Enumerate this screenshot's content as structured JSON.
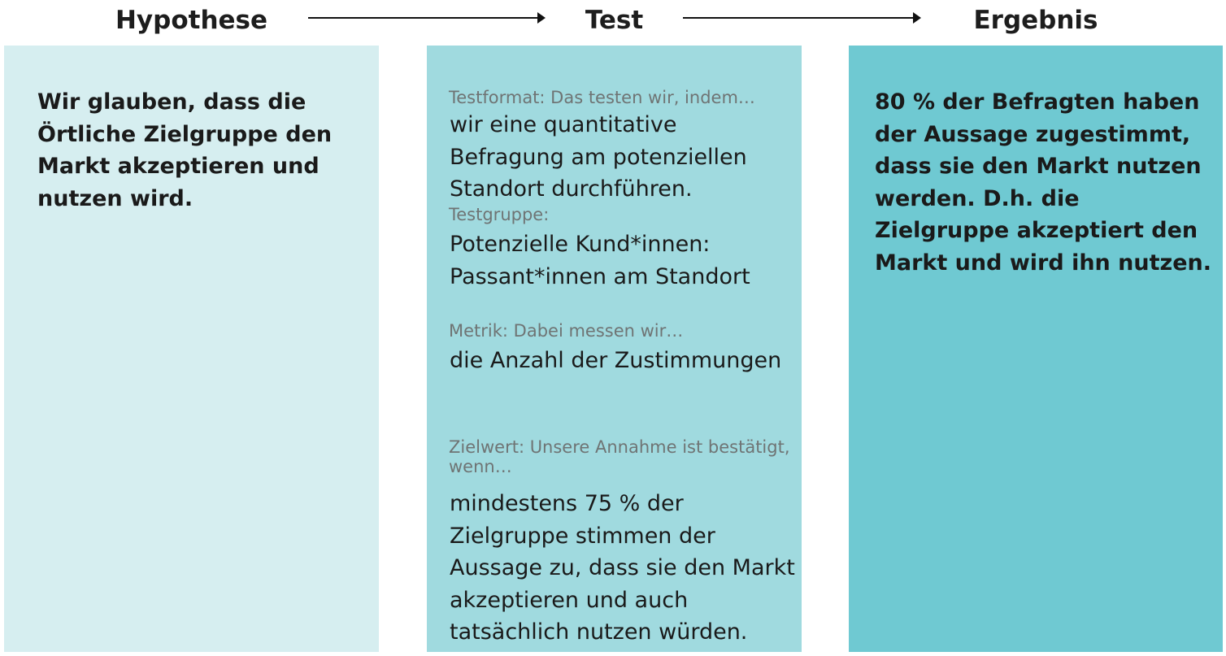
{
  "headers": {
    "hypothese": "Hypothese",
    "test": "Test",
    "ergebnis": "Ergebnis"
  },
  "colors": {
    "panel_hypothese": "#d6eef0",
    "panel_test": "#a0dadf",
    "panel_ergebnis": "#6fc9d2",
    "arrow": "#111111"
  },
  "hypothese": {
    "text": "Wir glauben, dass die Örtliche Zielgruppe den Markt akzeptieren und nutzen wird."
  },
  "test": {
    "format_label": "Testformat: Das testen wir, indem…",
    "format_value": "wir eine quantitative Befragung am potenziellen Standort durchführen.",
    "gruppe_label": "Testgruppe:",
    "gruppe_value": "Potenzielle Kund*innen: Passant*innen am Standort",
    "metrik_label": "Metrik: Dabei messen wir…",
    "metrik_value": "die Anzahl der Zustimmungen",
    "zielwert_label": "Zielwert: Unsere Annahme ist bestätigt, wenn…",
    "zielwert_value": "mindestens 75 % der Zielgruppe stimmen der Aussage zu, dass sie den Markt akzeptieren und auch tatsächlich nutzen würden."
  },
  "ergebnis": {
    "text": "80 % der Befragten haben der Aussage zugestimmt, dass sie den Markt nutzen werden. D.h. die Zielgruppe akzeptiert den Markt und wird ihn nutzen."
  }
}
